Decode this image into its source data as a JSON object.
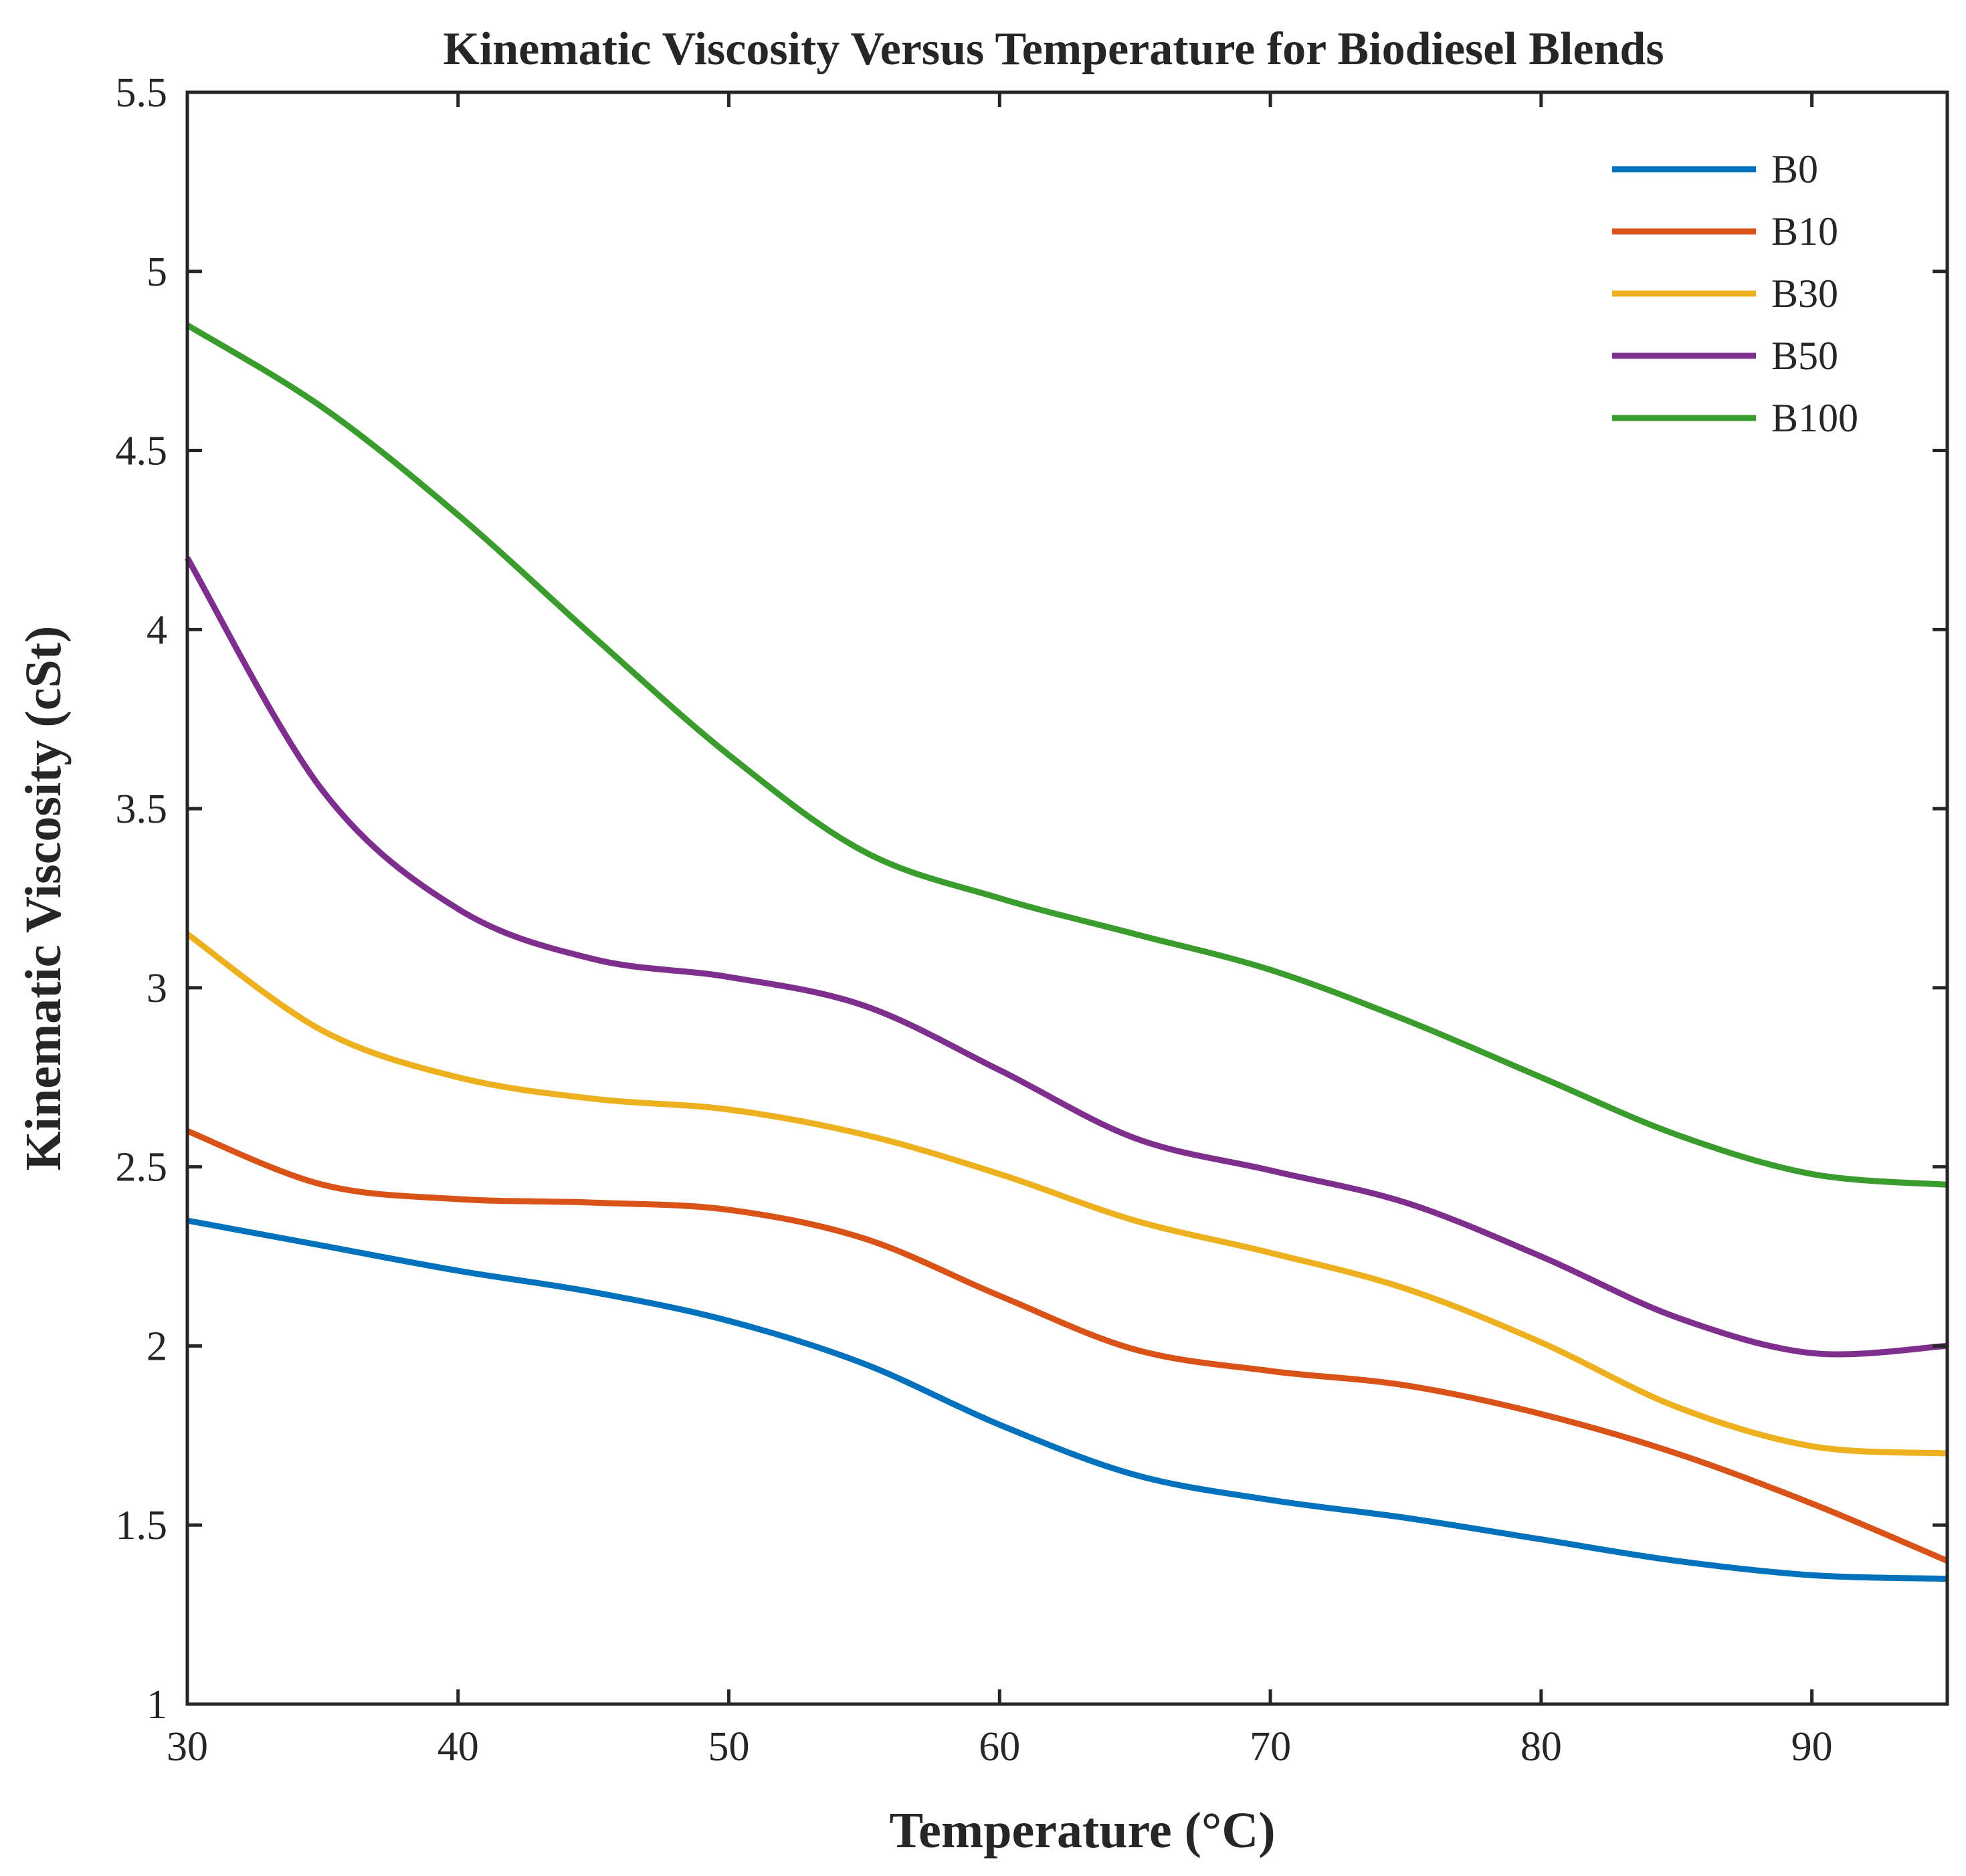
{
  "chart_data": {
    "type": "line",
    "title": "Kinematic Viscosity Versus Temperature for Biodiesel Blends",
    "xlabel": "Temperature (°C)",
    "ylabel": "Kinematic Viscosity (cSt)",
    "xlim": [
      30,
      95
    ],
    "ylim": [
      1,
      5.5
    ],
    "xticks": [
      30,
      40,
      50,
      60,
      70,
      80,
      90
    ],
    "yticks": [
      1,
      1.5,
      2,
      2.5,
      3,
      3.5,
      4,
      4.5,
      5,
      5.5
    ],
    "xtick_labels": [
      "30",
      "40",
      "50",
      "60",
      "70",
      "80",
      "90"
    ],
    "ytick_labels": [
      "1",
      "1.5",
      "2",
      "2.5",
      "3",
      "3.5",
      "4",
      "4.5",
      "5",
      "5.5"
    ],
    "grid": false,
    "legend_position": "top-right",
    "x": [
      30,
      35,
      40,
      45,
      50,
      55,
      60,
      65,
      70,
      75,
      80,
      85,
      90,
      95
    ],
    "series": [
      {
        "name": "B0",
        "color": "#0072BD",
        "values": [
          2.35,
          2.28,
          2.21,
          2.15,
          2.07,
          1.95,
          1.78,
          1.64,
          1.57,
          1.52,
          1.46,
          1.4,
          1.36,
          1.35
        ]
      },
      {
        "name": "B10",
        "color": "#D95319",
        "values": [
          2.6,
          2.45,
          2.41,
          2.4,
          2.38,
          2.3,
          2.14,
          1.99,
          1.93,
          1.89,
          1.81,
          1.7,
          1.56,
          1.4
        ]
      },
      {
        "name": "B30",
        "color": "#EDB120",
        "values": [
          3.15,
          2.88,
          2.75,
          2.69,
          2.66,
          2.59,
          2.48,
          2.35,
          2.26,
          2.16,
          2.01,
          1.83,
          1.72,
          1.7
        ]
      },
      {
        "name": "B50",
        "color": "#7E2F8E",
        "values": [
          4.2,
          3.55,
          3.22,
          3.08,
          3.03,
          2.95,
          2.77,
          2.58,
          2.49,
          2.4,
          2.25,
          2.08,
          1.98,
          2.0
        ]
      },
      {
        "name": "B100",
        "color": "#3B9C2E",
        "values": [
          4.85,
          4.62,
          4.32,
          3.98,
          3.65,
          3.38,
          3.25,
          3.15,
          3.05,
          2.91,
          2.75,
          2.59,
          2.48,
          2.45
        ]
      }
    ]
  }
}
